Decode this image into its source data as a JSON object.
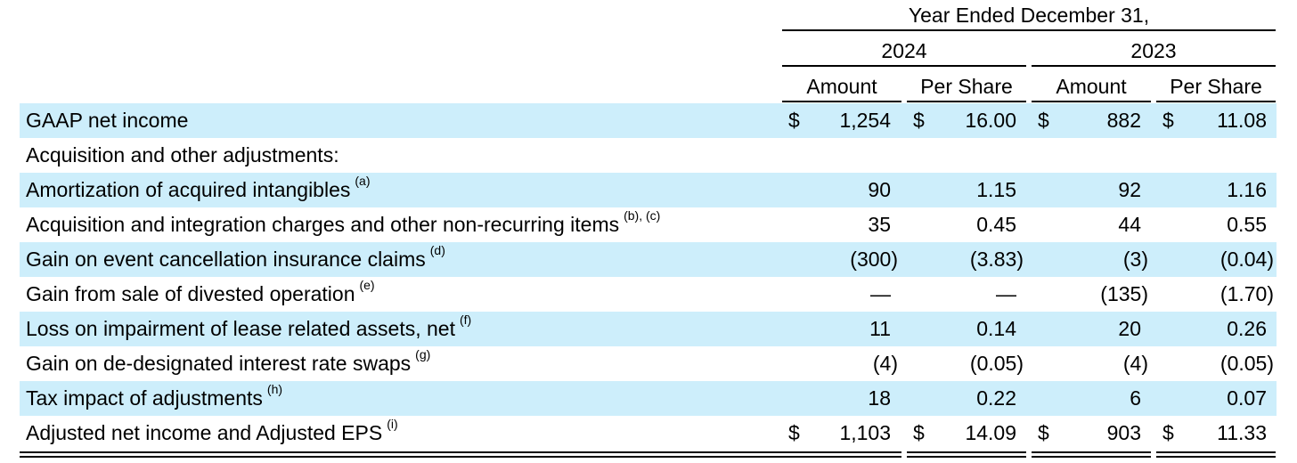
{
  "header": {
    "period": "Year Ended December 31,",
    "years": [
      "2024",
      "2023"
    ],
    "subcols": [
      "Amount",
      "Per Share",
      "Amount",
      "Per Share"
    ]
  },
  "rows": [
    {
      "label": "GAAP net income",
      "note": "",
      "shaded": true,
      "dollar": true,
      "values": [
        "1,254",
        "16.00",
        "882",
        "11.08"
      ]
    },
    {
      "label": "Acquisition and other adjustments:",
      "note": "",
      "shaded": false,
      "dollar": false,
      "values": [
        "",
        "",
        "",
        ""
      ]
    },
    {
      "label": "Amortization of acquired intangibles",
      "note": "(a)",
      "shaded": true,
      "dollar": false,
      "values": [
        "90",
        "1.15",
        "92",
        "1.16"
      ]
    },
    {
      "label": "Acquisition and integration charges and other non-recurring items",
      "note": "(b), (c)",
      "shaded": false,
      "dollar": false,
      "values": [
        "35",
        "0.45",
        "44",
        "0.55"
      ]
    },
    {
      "label": "Gain on event cancellation insurance claims",
      "note": "(d)",
      "shaded": true,
      "dollar": false,
      "values": [
        "(300)",
        "(3.83)",
        "(3)",
        "(0.04)"
      ]
    },
    {
      "label": "Gain from sale of divested operation",
      "note": "(e)",
      "shaded": false,
      "dollar": false,
      "values": [
        "—",
        "—",
        "(135)",
        "(1.70)"
      ]
    },
    {
      "label": "Loss on impairment of lease related assets, net",
      "note": "(f)",
      "shaded": true,
      "dollar": false,
      "values": [
        "11",
        "0.14",
        "20",
        "0.26"
      ]
    },
    {
      "label": "Gain on de-designated interest rate swaps",
      "note": "(g)",
      "shaded": false,
      "dollar": false,
      "values": [
        "(4)",
        "(0.05)",
        "(4)",
        "(0.05)"
      ]
    },
    {
      "label": "Tax impact of adjustments",
      "note": "(h)",
      "shaded": true,
      "dollar": false,
      "values": [
        "18",
        "0.22",
        "6",
        "0.07"
      ]
    },
    {
      "label": "Adjusted net income and Adjusted EPS",
      "note": "(i)",
      "shaded": false,
      "dollar": true,
      "values": [
        "1,103",
        "14.09",
        "903",
        "11.33"
      ]
    }
  ],
  "currency_symbol": "$"
}
